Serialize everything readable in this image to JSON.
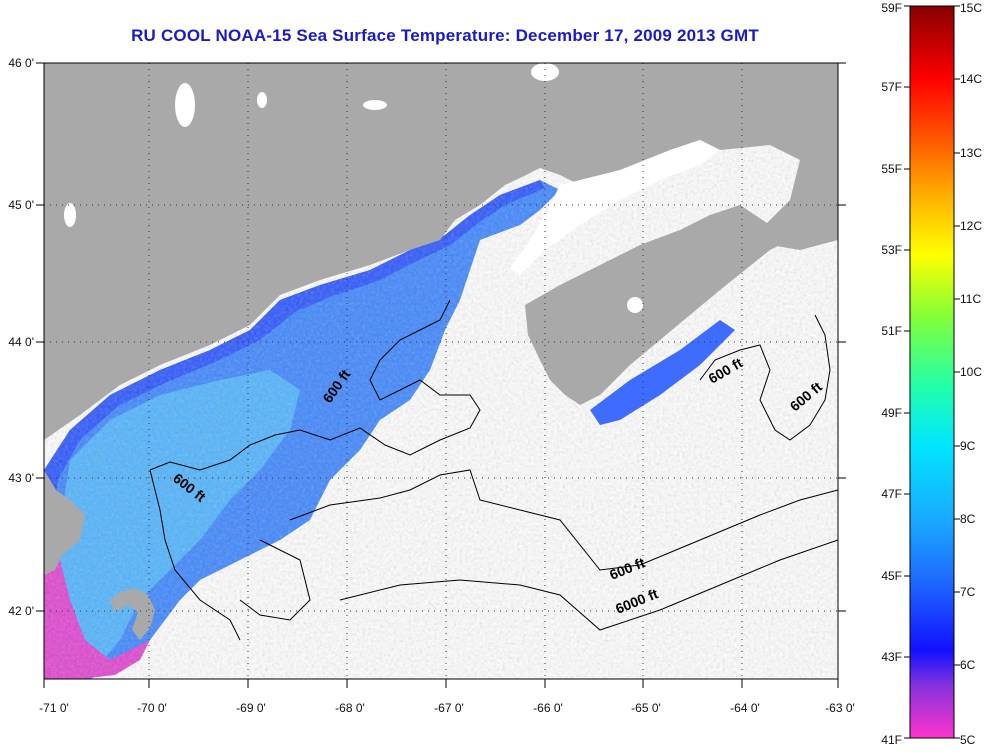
{
  "title": "RU COOL  NOAA-15  Sea Surface Temperature:  December 17, 2009 2013 GMT",
  "lon_ticks": [
    "-71 0'",
    "-70 0'",
    "-69 0'",
    "-68 0'",
    "-67 0'",
    "-66 0'",
    "-65 0'",
    "-64 0'",
    "-63 0'"
  ],
  "lat_ticks": [
    "46 0'",
    "45 0'",
    "44 0'",
    "43 0'",
    "42 0'"
  ],
  "contour_labels": [
    "600 ft",
    "600 ft",
    "600 ft",
    "600 ft",
    "600 ft",
    "6000 ft"
  ],
  "colorbar": {
    "fahrenheit": [
      "59F",
      "57F",
      "55F",
      "53F",
      "51F",
      "49F",
      "47F",
      "45F",
      "43F",
      "41F"
    ],
    "celsius": [
      "15C",
      "14C",
      "13C",
      "12C",
      "11C",
      "10C",
      "9C",
      "8C",
      "7C",
      "6C",
      "5C"
    ]
  },
  "colors": {
    "land": "#a9a9a9",
    "ocean_nodata": "#ffffff",
    "title": "#1a1acc"
  }
}
